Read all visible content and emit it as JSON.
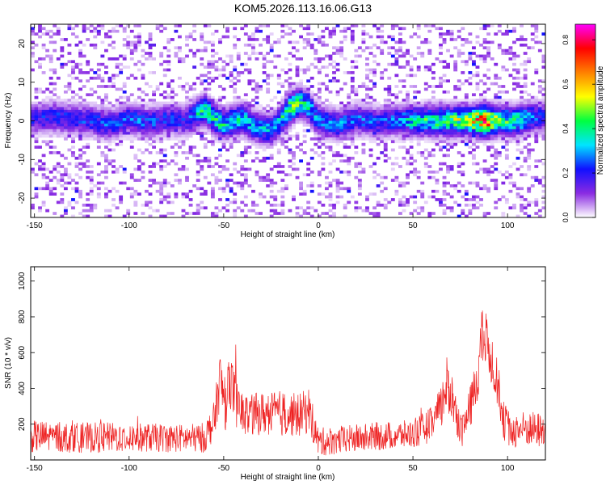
{
  "title": "KOM5.2026.113.16.06.G13",
  "chart_data": [
    {
      "type": "heatmap",
      "title": "KOM5.2026.113.16.06.G13",
      "xlabel": "Height of straight line (km)",
      "ylabel": "Frequency (Hz)",
      "xlim": [
        -152,
        120
      ],
      "ylim": [
        -25,
        25
      ],
      "xticks": [
        -150,
        -100,
        -50,
        0,
        50,
        100
      ],
      "yticks": [
        -20,
        -10,
        0,
        10,
        20
      ],
      "colorbar": {
        "label": "Normalized spectral amplitude",
        "range": [
          0.0,
          0.87
        ],
        "ticks": [
          0.0,
          0.2,
          0.4,
          0.6,
          0.8
        ],
        "colors": [
          "#ffffff",
          "#8a2be2",
          "#1010ff",
          "#00e5ff",
          "#00ff40",
          "#ffff00",
          "#ff8000",
          "#ff0000",
          "#ff00ff"
        ]
      },
      "ridge": [
        {
          "x": -150,
          "f": 0.5,
          "a": 0.22
        },
        {
          "x": -140,
          "f": 1.0,
          "a": 0.25
        },
        {
          "x": -130,
          "f": 0.5,
          "a": 0.24
        },
        {
          "x": -120,
          "f": 0.0,
          "a": 0.26
        },
        {
          "x": -110,
          "f": -1.0,
          "a": 0.27
        },
        {
          "x": -100,
          "f": 0.5,
          "a": 0.28
        },
        {
          "x": -90,
          "f": -0.5,
          "a": 0.27
        },
        {
          "x": -80,
          "f": 0.5,
          "a": 0.25
        },
        {
          "x": -70,
          "f": 0.0,
          "a": 0.24
        },
        {
          "x": -60,
          "f": 3.0,
          "a": 0.45
        },
        {
          "x": -55,
          "f": 0.5,
          "a": 0.43
        },
        {
          "x": -50,
          "f": -1.0,
          "a": 0.4
        },
        {
          "x": -45,
          "f": 0.0,
          "a": 0.42
        },
        {
          "x": -40,
          "f": 0.5,
          "a": 0.4
        },
        {
          "x": -35,
          "f": -1.0,
          "a": 0.36
        },
        {
          "x": -30,
          "f": -2.0,
          "a": 0.35
        },
        {
          "x": -25,
          "f": -2.5,
          "a": 0.33
        },
        {
          "x": -20,
          "f": 0.0,
          "a": 0.38
        },
        {
          "x": -15,
          "f": 3.0,
          "a": 0.55
        },
        {
          "x": -10,
          "f": 5.0,
          "a": 0.45
        },
        {
          "x": -5,
          "f": 3.5,
          "a": 0.4
        },
        {
          "x": 0,
          "f": 0.0,
          "a": 0.3
        },
        {
          "x": 10,
          "f": -1.0,
          "a": 0.3
        },
        {
          "x": 20,
          "f": 0.5,
          "a": 0.28
        },
        {
          "x": 30,
          "f": -0.5,
          "a": 0.27
        },
        {
          "x": 40,
          "f": 0.0,
          "a": 0.28
        },
        {
          "x": 50,
          "f": 0.0,
          "a": 0.4
        },
        {
          "x": 60,
          "f": 0.0,
          "a": 0.45
        },
        {
          "x": 70,
          "f": 0.0,
          "a": 0.5
        },
        {
          "x": 80,
          "f": 0.0,
          "a": 0.55
        },
        {
          "x": 88,
          "f": 0.0,
          "a": 0.87
        },
        {
          "x": 95,
          "f": 0.0,
          "a": 0.5
        },
        {
          "x": 105,
          "f": 0.0,
          "a": 0.45
        },
        {
          "x": 115,
          "f": 1.0,
          "a": 0.3
        },
        {
          "x": 120,
          "f": 1.0,
          "a": 0.25
        }
      ]
    },
    {
      "type": "line",
      "xlabel": "Height of straight line (km)",
      "ylabel": "SNR (10 * v/v)",
      "xlim": [
        -152,
        120
      ],
      "ylim": [
        0,
        1080
      ],
      "xticks": [
        -150,
        -100,
        -50,
        0,
        50,
        100
      ],
      "yticks": [
        200,
        400,
        600,
        800,
        1000
      ],
      "series": [
        {
          "name": "SNR",
          "color": "#ee2222",
          "x": [
            -152,
            -145,
            -130,
            -110,
            -90,
            -70,
            -60,
            -55,
            -52,
            -49,
            -47,
            -45,
            -42,
            -38,
            -30,
            -20,
            -10,
            -5,
            0,
            10,
            30,
            50,
            60,
            65,
            68,
            70,
            73,
            76,
            80,
            84,
            86,
            88,
            90,
            92,
            95,
            98,
            102,
            108,
            115,
            120
          ],
          "baseline": [
            130,
            130,
            125,
            125,
            125,
            120,
            125,
            220,
            450,
            300,
            480,
            380,
            270,
            250,
            260,
            260,
            250,
            280,
            100,
            110,
            130,
            145,
            200,
            290,
            430,
            380,
            250,
            160,
            280,
            450,
            660,
            680,
            620,
            550,
            420,
            220,
            160,
            175,
            170,
            160
          ],
          "noise": [
            90,
            90,
            85,
            85,
            80,
            80,
            85,
            110,
            160,
            140,
            170,
            150,
            130,
            120,
            120,
            130,
            120,
            130,
            80,
            80,
            80,
            80,
            100,
            130,
            160,
            150,
            110,
            90,
            120,
            150,
            170,
            180,
            160,
            150,
            130,
            110,
            100,
            100,
            100,
            100
          ]
        }
      ]
    }
  ]
}
